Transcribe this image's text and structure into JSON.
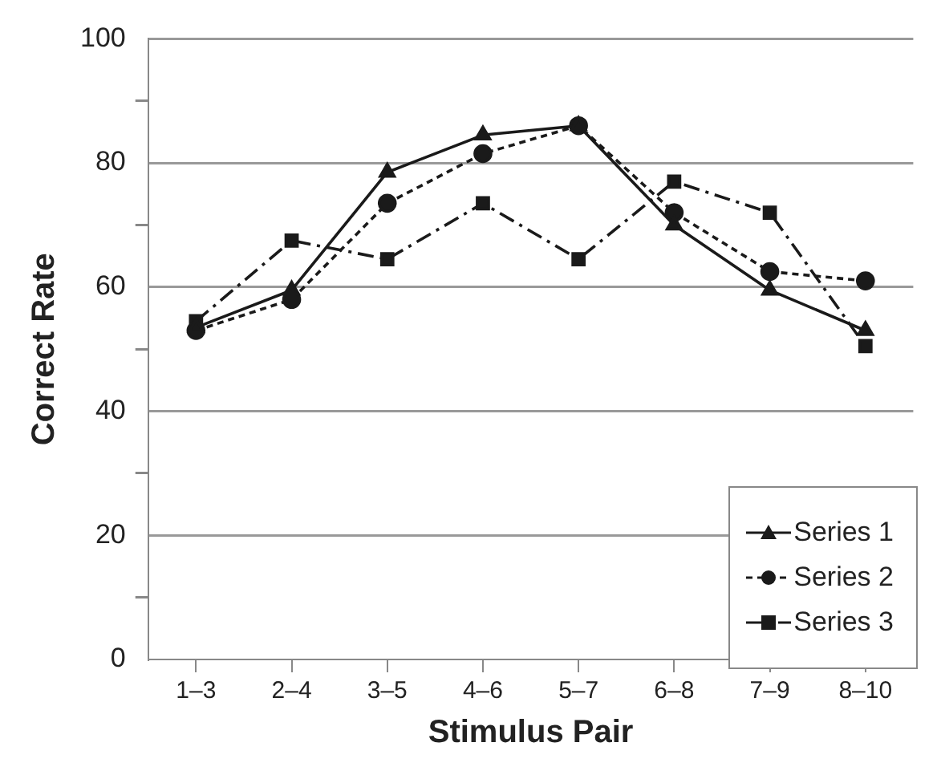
{
  "chart_data": {
    "type": "line",
    "xlabel": "Stimulus Pair",
    "ylabel": "Correct Rate",
    "categories": [
      "1–3",
      "2–4",
      "3–5",
      "4–6",
      "5–7",
      "6–8",
      "7–9",
      "8–10"
    ],
    "series": [
      {
        "name": "Series 1",
        "color": "#1a1a1a",
        "marker": "triangle",
        "line_style": "solid",
        "values": [
          53.5,
          59.5,
          78.5,
          84.5,
          86,
          70,
          59.5,
          53
        ]
      },
      {
        "name": "Series 2",
        "color": "#1a1a1a",
        "marker": "circle",
        "line_style": "dotted",
        "values": [
          53,
          58,
          73.5,
          81.5,
          86,
          72,
          62.5,
          61
        ]
      },
      {
        "name": "Series 3",
        "color": "#1a1a1a",
        "marker": "square",
        "line_style": "dashed",
        "values": [
          54.5,
          67.5,
          64.5,
          73.5,
          64.5,
          77,
          72,
          50.5
        ]
      }
    ],
    "ylim": [
      0,
      100
    ],
    "yticks": [
      0,
      {
        "value": 10,
        "label": null
      },
      20,
      {
        "value": 30,
        "label": null
      },
      40,
      {
        "value": 50,
        "label": null
      },
      60,
      {
        "value": 70,
        "label": null
      },
      80,
      {
        "value": 90,
        "label": null
      },
      100
    ],
    "grid": "y",
    "legend": "bottom right"
  }
}
